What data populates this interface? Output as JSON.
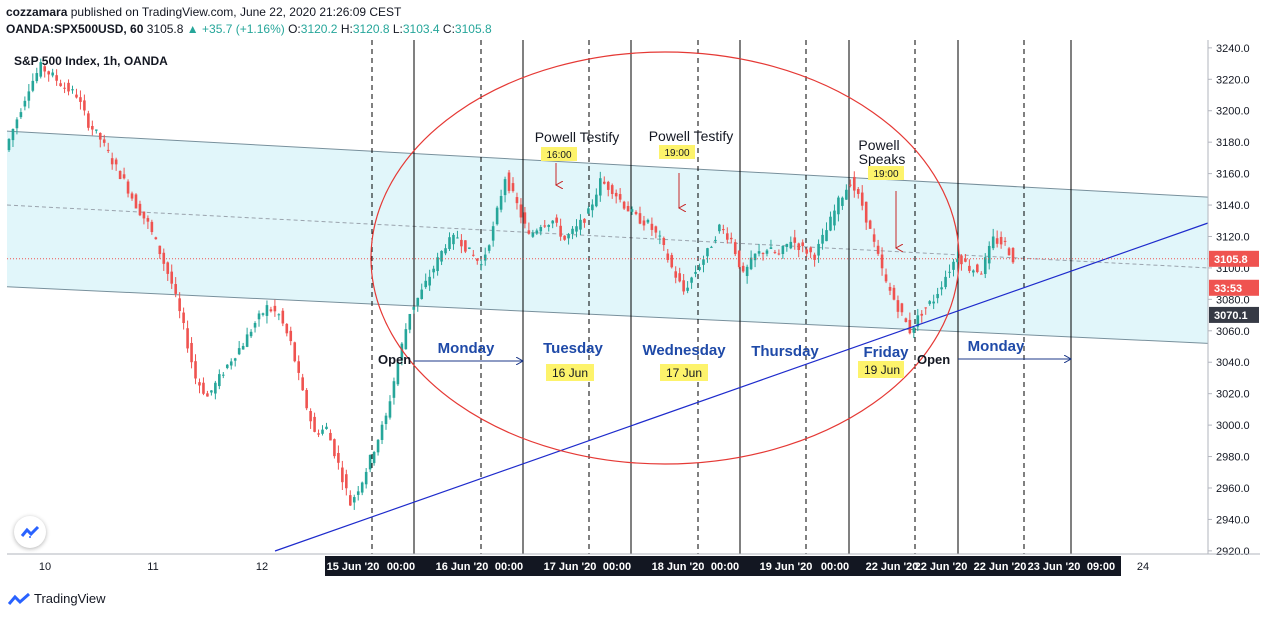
{
  "header": {
    "publisher": "cozzamara",
    "published_text": "published on TradingView.com, June 22, 2020 21:26:09 CEST",
    "symbol": "OANDA:SPX500USD, 60",
    "last": "3105.8",
    "change": "+35.7 (+1.16%)",
    "o_label": "O:",
    "o": "3120.2",
    "h_label": "H:",
    "h": "3120.8",
    "l_label": "L:",
    "l": "3103.4",
    "c_label": "C:",
    "c": "3105.8"
  },
  "footer": {
    "brand": "TradingView"
  },
  "chart_data": {
    "type": "candlestick",
    "title": "S&P 500 Index, 1h, OANDA",
    "y_ticks": [
      2920,
      2940,
      2960,
      2980,
      3000,
      3020,
      3040,
      3060,
      3080,
      3100,
      3120,
      3140,
      3160,
      3180,
      3200,
      3220,
      3240
    ],
    "ylim": [
      2918,
      3245
    ],
    "grid": false,
    "x_ticks": [
      "10",
      "11",
      "12",
      "15 Jun '20",
      "00:00",
      "16 Jun '20",
      "00:00",
      "17 Jun '20",
      "00:00",
      "18 Jun '20",
      "00:00",
      "19 Jun '20",
      "00:00",
      "22 Jun '20",
      "22 Jun '20",
      "22 Jun '20",
      "23 Jun '20",
      "09:00",
      "24"
    ],
    "price_labels": [
      {
        "value": 3105.8,
        "text": "3105.8",
        "color": "#ef5350"
      },
      {
        "value": 3095,
        "text": "33:53",
        "color": "#ef5350"
      },
      {
        "value": 3070.1,
        "text": "3070.1",
        "color": "#363a45"
      }
    ],
    "channel": {
      "upper": [
        [
          3187,
          3145
        ]
      ],
      "middle": [
        [
          3140,
          3100
        ]
      ],
      "lower": [
        [
          3088,
          3052
        ]
      ],
      "fill": "#d9f4f9"
    },
    "trendline_color": "#1e2bcc",
    "annotations": {
      "days": [
        "Monday",
        "Tuesday",
        "Wednesday",
        "Thursday",
        "Friday",
        "Monday"
      ],
      "dates": [
        "16 Jun",
        "17 Jun",
        "19 Jun"
      ],
      "open_labels": [
        "Open",
        "Open"
      ],
      "events": [
        "Powell Testify",
        "Powell Testify",
        "Powell",
        "Speaks"
      ],
      "event_times": [
        "16:00",
        "19:00",
        "19:00"
      ]
    },
    "price_path": [
      [
        0,
        3175
      ],
      [
        3,
        3195
      ],
      [
        6,
        3215
      ],
      [
        9,
        3228
      ],
      [
        12,
        3222
      ],
      [
        15,
        3215
      ],
      [
        18,
        3210
      ],
      [
        21,
        3192
      ],
      [
        24,
        3182
      ],
      [
        27,
        3168
      ],
      [
        30,
        3155
      ],
      [
        33,
        3140
      ],
      [
        36,
        3128
      ],
      [
        39,
        3110
      ],
      [
        42,
        3090
      ],
      [
        45,
        3062
      ],
      [
        48,
        3030
      ],
      [
        51,
        3018
      ],
      [
        54,
        3030
      ],
      [
        57,
        3042
      ],
      [
        60,
        3052
      ],
      [
        63,
        3065
      ],
      [
        66,
        3075
      ],
      [
        69,
        3070
      ],
      [
        72,
        3052
      ],
      [
        75,
        3020
      ],
      [
        78,
        2995
      ],
      [
        81,
        2998
      ],
      [
        84,
        2975
      ],
      [
        87,
        2950
      ],
      [
        90,
        2965
      ],
      [
        93,
        2985
      ],
      [
        96,
        3005
      ],
      [
        99,
        3040
      ],
      [
        102,
        3072
      ],
      [
        105,
        3085
      ],
      [
        108,
        3100
      ],
      [
        111,
        3115
      ],
      [
        114,
        3120
      ],
      [
        117,
        3110
      ],
      [
        120,
        3102
      ],
      [
        123,
        3125
      ],
      [
        126,
        3158
      ],
      [
        129,
        3140
      ],
      [
        132,
        3120
      ],
      [
        135,
        3128
      ],
      [
        138,
        3130
      ],
      [
        141,
        3118
      ],
      [
        144,
        3125
      ],
      [
        147,
        3135
      ],
      [
        150,
        3155
      ],
      [
        153,
        3150
      ],
      [
        156,
        3140
      ],
      [
        159,
        3132
      ],
      [
        162,
        3128
      ],
      [
        165,
        3118
      ],
      [
        168,
        3100
      ],
      [
        171,
        3085
      ],
      [
        174,
        3098
      ],
      [
        177,
        3110
      ],
      [
        180,
        3126
      ],
      [
        183,
        3118
      ],
      [
        186,
        3095
      ],
      [
        189,
        3108
      ],
      [
        192,
        3112
      ],
      [
        195,
        3108
      ],
      [
        198,
        3118
      ],
      [
        201,
        3112
      ],
      [
        204,
        3108
      ],
      [
        207,
        3124
      ],
      [
        210,
        3142
      ],
      [
        213,
        3155
      ],
      [
        216,
        3140
      ],
      [
        219,
        3115
      ],
      [
        222,
        3090
      ],
      [
        225,
        3075
      ],
      [
        228,
        3060
      ],
      [
        231,
        3072
      ],
      [
        234,
        3080
      ],
      [
        237,
        3095
      ],
      [
        240,
        3108
      ],
      [
        243,
        3100
      ],
      [
        246,
        3098
      ],
      [
        249,
        3118
      ],
      [
        252,
        3115
      ],
      [
        254,
        3105.8
      ]
    ]
  }
}
